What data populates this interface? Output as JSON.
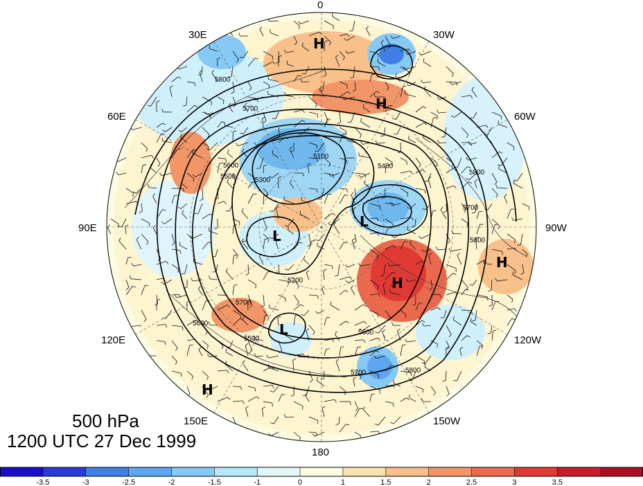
{
  "map": {
    "lon_labels": [
      {
        "text": "0",
        "key": "lon-0"
      },
      {
        "text": "30W",
        "key": "lon-30w"
      },
      {
        "text": "60W",
        "key": "lon-60w"
      },
      {
        "text": "90W",
        "key": "lon-90w"
      },
      {
        "text": "120W",
        "key": "lon-120w"
      },
      {
        "text": "150W",
        "key": "lon-150w"
      },
      {
        "text": "180",
        "key": "lon-180"
      },
      {
        "text": "150E",
        "key": "lon-150e"
      },
      {
        "text": "120E",
        "key": "lon-120e"
      },
      {
        "text": "90E",
        "key": "lon-90e"
      },
      {
        "text": "60E",
        "key": "lon-60e"
      },
      {
        "text": "30E",
        "key": "lon-30e"
      }
    ],
    "pressure_centers": [
      {
        "label": "H"
      },
      {
        "label": "H"
      },
      {
        "label": "H"
      },
      {
        "label": "H"
      },
      {
        "label": "H"
      },
      {
        "label": "L"
      },
      {
        "label": "L"
      },
      {
        "label": "L"
      }
    ],
    "contour_labels": [
      "5800",
      "5700",
      "5600",
      "5500",
      "5400",
      "5300",
      "5200",
      "5100",
      "5800",
      "5700",
      "5800",
      "5600",
      "5700",
      "5600",
      "5500",
      "5700",
      "5800"
    ],
    "colors": {
      "positive": "#e8453c",
      "negative": "#3f8fe0",
      "land_lines": "#333333"
    }
  },
  "title": {
    "level": "500 hPa",
    "time": "1200 UTC 27 Dec 1999"
  },
  "colorbar": {
    "colors": [
      "#1a0fc8",
      "#2a3ad6",
      "#3f7fe6",
      "#5ea6f0",
      "#86c9f4",
      "#b6e6fa",
      "#e3f7fb",
      "#fdfbe1",
      "#fbe3b0",
      "#f8c08a",
      "#f29668",
      "#eb6a4d",
      "#e13a35",
      "#c71d2a",
      "#a8101f"
    ],
    "tick_labels": [
      "-3.5",
      "-3",
      "-2.5",
      "-2",
      "-1.5",
      "-1",
      "0",
      "1",
      "1.5",
      "2",
      "2.5",
      "3",
      "3.5"
    ]
  }
}
